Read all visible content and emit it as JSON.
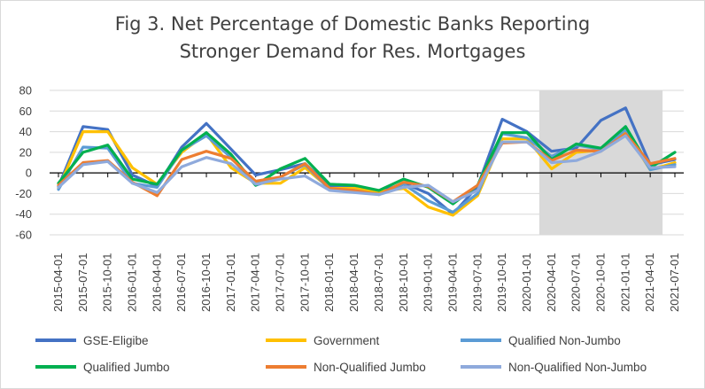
{
  "chart_data": {
    "type": "line",
    "title_lines": [
      "Fig 3. Net Percentage of Domestic Banks Reporting",
      "Stronger Demand for Res. Mortgages"
    ],
    "xlabel": "",
    "ylabel": "",
    "ylim": [
      -60,
      80
    ],
    "yticks": [
      80,
      60,
      40,
      20,
      0,
      -20,
      -40,
      -60
    ],
    "grid": "horizontal",
    "legend_position": "bottom",
    "shaded_region": {
      "from": "2020-04-01",
      "to": "2021-04-01",
      "color": "#d9d9d9"
    },
    "categories": [
      "2015-04-01",
      "2015-07-01",
      "2015-10-01",
      "2016-01-01",
      "2016-04-01",
      "2016-07-01",
      "2016-10-01",
      "2017-01-01",
      "2017-04-01",
      "2017-07-01",
      "2017-10-01",
      "2018-01-01",
      "2018-04-01",
      "2018-07-01",
      "2018-10-01",
      "2019-01-01",
      "2019-04-01",
      "2019-07-01",
      "2019-10-01",
      "2020-01-01",
      "2020-04-01",
      "2020-07-01",
      "2020-10-01",
      "2021-01-01",
      "2021-04-01",
      "2021-07-01"
    ],
    "series": [
      {
        "name": "GSE-Eligibe",
        "color": "#4472c4",
        "values": [
          -13,
          45,
          42,
          -2,
          -13,
          25,
          48,
          23,
          -2,
          3,
          9,
          -13,
          -13,
          -19,
          -10,
          -20,
          -40,
          -13,
          52,
          40,
          21,
          24,
          51,
          63,
          8,
          13
        ]
      },
      {
        "name": "Government",
        "color": "#ffc000",
        "values": [
          -15,
          40,
          40,
          5,
          -11,
          20,
          38,
          5,
          -10,
          -10,
          5,
          -15,
          -15,
          -18,
          -15,
          -33,
          -41,
          -22,
          33,
          33,
          4,
          20,
          22,
          40,
          3,
          10
        ]
      },
      {
        "name": "Qualified Non-Jumbo",
        "color": "#5b9bd5",
        "values": [
          -16,
          25,
          24,
          -10,
          -14,
          22,
          36,
          15,
          -12,
          -4,
          8,
          -16,
          -17,
          -21,
          -11,
          -27,
          -38,
          -20,
          38,
          34,
          16,
          27,
          23,
          42,
          3,
          8
        ]
      },
      {
        "name": "Qualified Jumbo",
        "color": "#00b050",
        "values": [
          -10,
          20,
          27,
          -6,
          -11,
          22,
          39,
          18,
          -12,
          4,
          14,
          -11,
          -12,
          -17,
          -6,
          -14,
          -30,
          -12,
          39,
          39,
          13,
          28,
          24,
          45,
          5,
          20
        ]
      },
      {
        "name": "Non-Qualified Jumbo",
        "color": "#ed7d31",
        "values": [
          -12,
          10,
          12,
          -9,
          -22,
          13,
          21,
          14,
          -8,
          -4,
          9,
          -15,
          -17,
          -21,
          -9,
          -13,
          -28,
          -12,
          29,
          30,
          12,
          22,
          21,
          38,
          9,
          14
        ]
      },
      {
        "name": "Non-Qualified Non-Jumbo",
        "color": "#8faadc",
        "values": [
          -14,
          8,
          11,
          -10,
          -19,
          6,
          15,
          9,
          -11,
          -6,
          -3,
          -17,
          -19,
          -21,
          -14,
          -12,
          -28,
          -17,
          30,
          30,
          10,
          12,
          21,
          36,
          5,
          6
        ]
      }
    ]
  }
}
